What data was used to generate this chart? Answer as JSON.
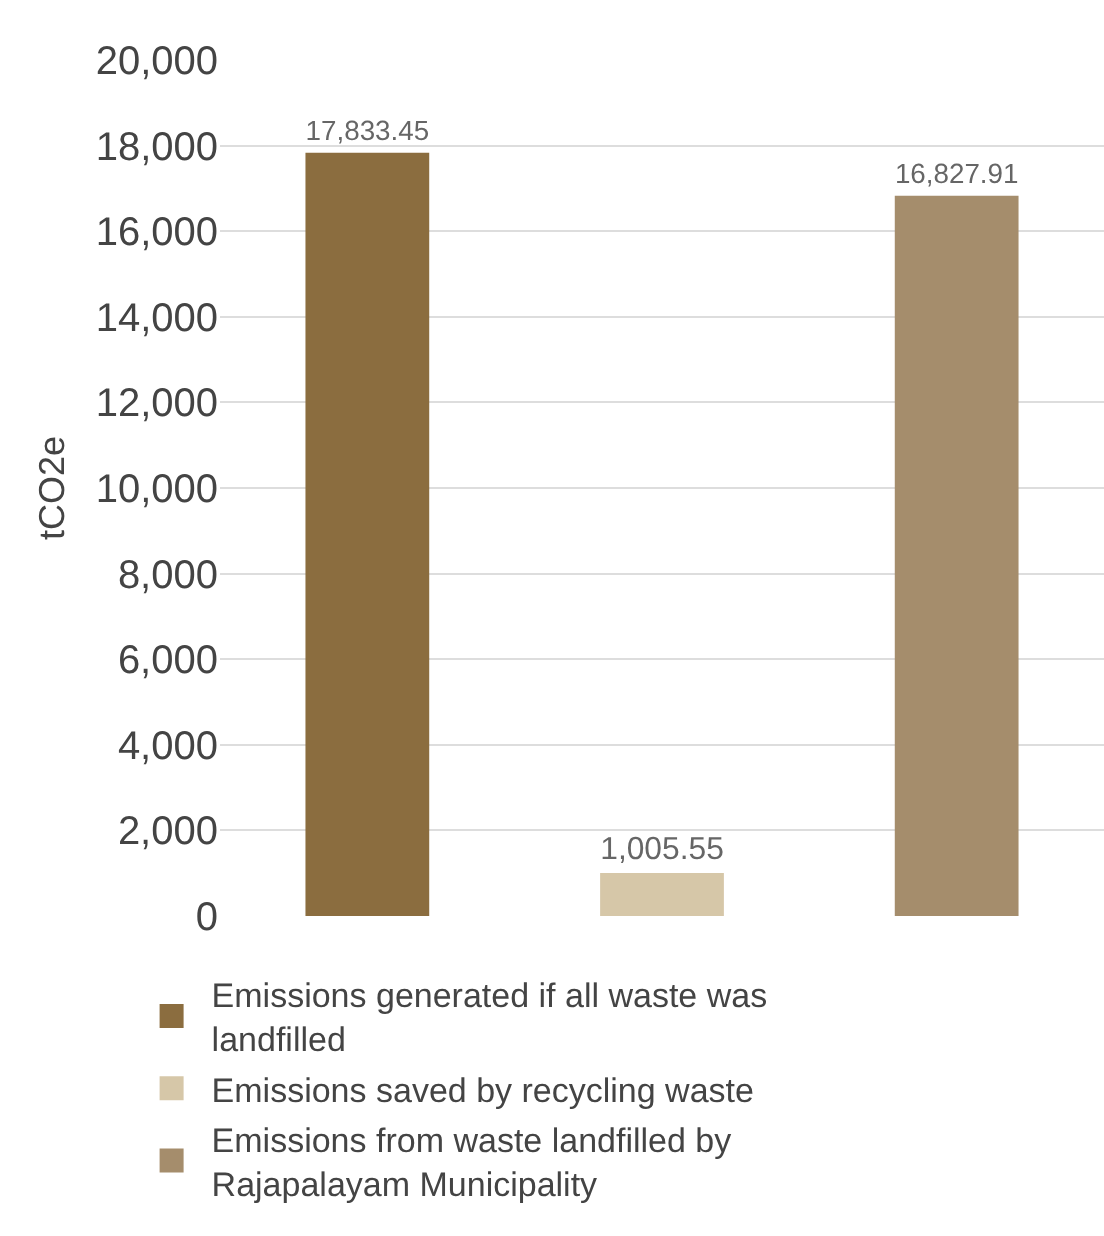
{
  "chart_data": {
    "type": "bar",
    "ylabel": "tCO2e",
    "categories": [
      null,
      null,
      null
    ],
    "series": [
      {
        "name": "Emissions generated if all waste was landfilled",
        "color": "#8b6d3f",
        "values": [
          17833.45,
          null,
          null
        ]
      },
      {
        "name": "Emissions saved by recycling waste",
        "color": "#d6c7a8",
        "values": [
          null,
          1005.55,
          null
        ]
      },
      {
        "name": "Emissions from waste landfilled by Rajapalayam Municipality",
        "color": "#a58d6c",
        "values": [
          null,
          null,
          16827.91
        ]
      }
    ],
    "value_labels": [
      "17,833.45",
      "1,005.55",
      "16,827.91"
    ],
    "ylim": [
      0,
      20000
    ],
    "yticks": [
      0,
      {
        "value": 2000,
        "label": "2,000"
      },
      {
        "value": 4000,
        "label": "4,000"
      },
      {
        "value": 6000,
        "label": "6,000"
      },
      {
        "value": 8000,
        "label": "8,000"
      },
      {
        "value": 10000,
        "label": "10,000"
      },
      {
        "value": 12000,
        "label": "12,000"
      },
      {
        "value": 14000,
        "label": "14,000"
      },
      {
        "value": 16000,
        "label": "16,000"
      },
      {
        "value": 18000,
        "label": "18,000"
      },
      {
        "value": 20000,
        "label": "20,000"
      }
    ],
    "grid": "y",
    "legend": "bottom",
    "tick_labels": "y"
  }
}
